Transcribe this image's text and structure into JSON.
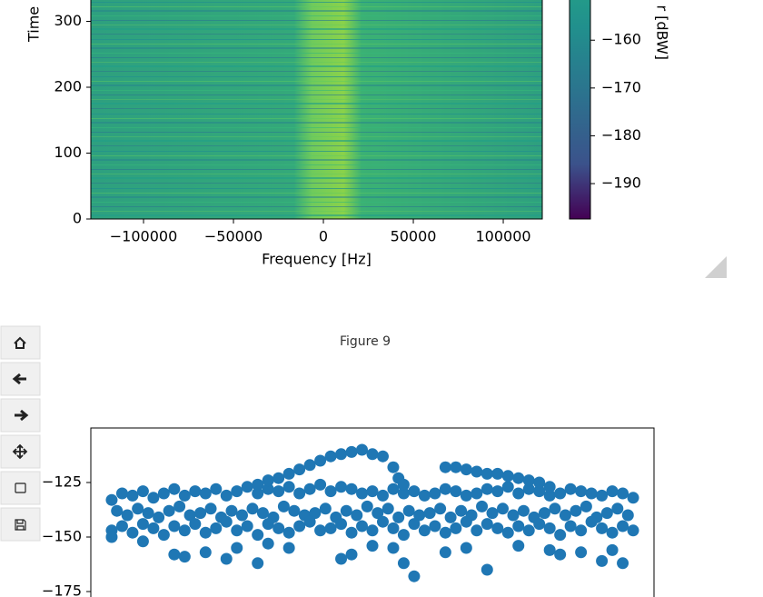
{
  "figure_title": "Figure 9",
  "chart_data": [
    {
      "type": "spectrogram",
      "xlabel": "Frequency [Hz]",
      "ylabel": "Time",
      "xlim": [
        -129300,
        121700
      ],
      "xticks": [
        {
          "value": -100000,
          "label": "−100000"
        },
        {
          "value": -50000,
          "label": "−50000"
        },
        0,
        50000,
        100000
      ],
      "ylim": [
        0,
        360
      ],
      "yticks": [
        0,
        100,
        200,
        300
      ],
      "colorbar": {
        "label": "r [dBW]",
        "lim": [
          -197.4,
          -140
        ],
        "ticks": [
          {
            "value": -160,
            "label": "−160"
          },
          {
            "value": -170,
            "label": "−170"
          },
          {
            "value": -180,
            "label": "−180"
          },
          {
            "value": -190,
            "label": "−190"
          }
        ]
      }
    },
    {
      "type": "scatter",
      "color": "#1f77b4",
      "xlim": [
        -4,
        104
      ],
      "ylim": [
        -180,
        -100
      ],
      "yticks": [
        {
          "value": -125,
          "label": "−125"
        },
        {
          "value": -150,
          "label": "−150"
        },
        {
          "value": -175,
          "label": "−175"
        }
      ],
      "x": [
        0,
        2,
        4,
        6,
        8,
        10,
        12,
        14,
        16,
        18,
        20,
        22,
        24,
        26,
        28,
        30,
        32,
        34,
        36,
        38,
        40,
        42,
        44,
        46,
        48,
        50,
        52,
        54,
        56,
        58,
        60,
        62,
        64,
        66,
        68,
        70,
        72,
        74,
        76,
        78,
        80,
        82,
        84,
        86,
        88,
        90,
        92,
        94,
        96,
        98,
        100,
        1,
        3,
        5,
        7,
        9,
        11,
        13,
        15,
        17,
        19,
        21,
        23,
        25,
        27,
        29,
        31,
        33,
        35,
        37,
        39,
        41,
        43,
        45,
        47,
        49,
        51,
        53,
        55,
        57,
        59,
        61,
        63,
        65,
        67,
        69,
        71,
        73,
        75,
        77,
        79,
        81,
        83,
        85,
        87,
        89,
        91,
        93,
        95,
        97,
        99,
        0,
        2,
        4,
        6,
        8,
        10,
        12,
        14,
        16,
        18,
        20,
        22,
        24,
        26,
        28,
        30,
        32,
        34,
        36,
        38,
        40,
        42,
        44,
        46,
        48,
        50,
        52,
        54,
        56,
        58,
        60,
        62,
        64,
        66,
        68,
        70,
        72,
        74,
        76,
        78,
        80,
        82,
        84,
        86,
        88,
        90,
        92,
        94,
        96,
        98,
        100,
        28,
        30,
        32,
        34,
        36,
        38,
        40,
        42,
        44,
        46,
        48,
        50,
        52,
        54,
        55,
        56,
        64,
        66,
        68,
        70,
        72,
        74,
        76,
        78,
        80,
        82,
        84,
        0,
        6,
        12,
        14,
        18,
        22,
        24,
        28,
        30,
        34,
        44,
        46,
        50,
        54,
        56,
        58,
        64,
        68,
        72,
        78,
        84,
        86,
        90,
        94,
        96,
        98
      ],
      "values": [
        -133,
        -130,
        -131,
        -129,
        -132,
        -130,
        -128,
        -131,
        -129,
        -130,
        -128,
        -131,
        -129,
        -127,
        -130,
        -128,
        -129,
        -127,
        -130,
        -128,
        -126,
        -129,
        -127,
        -128,
        -130,
        -129,
        -131,
        -128,
        -130,
        -129,
        -131,
        -130,
        -128,
        -129,
        -131,
        -130,
        -128,
        -129,
        -127,
        -130,
        -128,
        -129,
        -131,
        -130,
        -128,
        -129,
        -130,
        -131,
        -129,
        -130,
        -132,
        -138,
        -140,
        -137,
        -139,
        -141,
        -138,
        -136,
        -140,
        -139,
        -137,
        -141,
        -138,
        -140,
        -137,
        -139,
        -141,
        -136,
        -138,
        -140,
        -139,
        -137,
        -141,
        -138,
        -140,
        -136,
        -139,
        -137,
        -141,
        -138,
        -140,
        -139,
        -137,
        -141,
        -138,
        -140,
        -136,
        -139,
        -137,
        -140,
        -138,
        -141,
        -139,
        -137,
        -140,
        -138,
        -136,
        -141,
        -139,
        -137,
        -140,
        -147,
        -145,
        -148,
        -144,
        -146,
        -149,
        -145,
        -147,
        -144,
        -148,
        -146,
        -143,
        -147,
        -145,
        -149,
        -144,
        -146,
        -148,
        -145,
        -143,
        -147,
        -146,
        -144,
        -148,
        -145,
        -147,
        -143,
        -146,
        -149,
        -144,
        -147,
        -145,
        -148,
        -146,
        -143,
        -147,
        -144,
        -146,
        -148,
        -145,
        -147,
        -144,
        -146,
        -149,
        -145,
        -147,
        -143,
        -146,
        -148,
        -145,
        -147,
        -126,
        -124,
        -123,
        -121,
        -119,
        -117,
        -115,
        -113,
        -112,
        -111,
        -110,
        -112,
        -113,
        -118,
        -123,
        -126,
        -118,
        -118,
        -119,
        -120,
        -121,
        -121,
        -122,
        -123,
        -124,
        -125,
        -127,
        -150,
        -152,
        -158,
        -159,
        -157,
        -160,
        -155,
        -162,
        -153,
        -155,
        -160,
        -158,
        -154,
        -155,
        -162,
        -168,
        -157,
        -155,
        -165,
        -154,
        -156,
        -158,
        -157,
        -161,
        -156,
        -162
      ]
    }
  ]
}
